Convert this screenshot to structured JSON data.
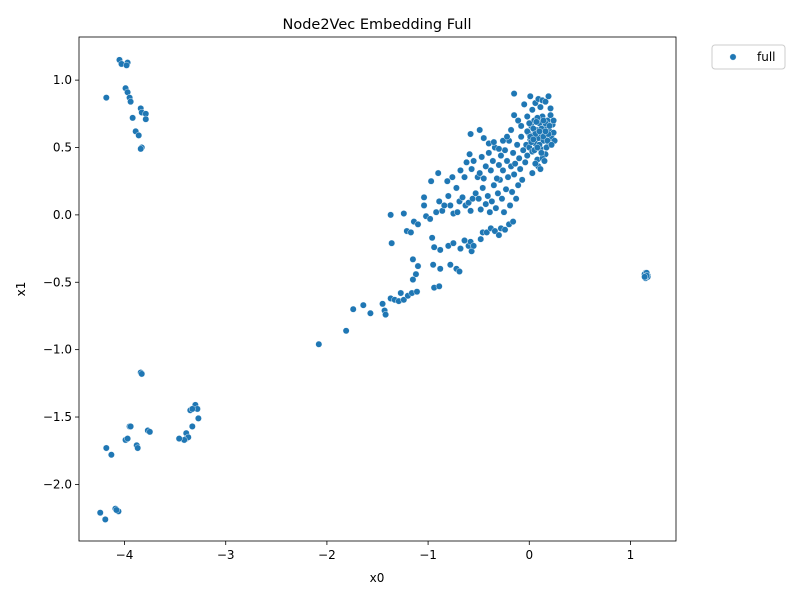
{
  "chart_data": {
    "type": "scatter",
    "title": "Node2Vec Embedding Full",
    "xlabel": "x0",
    "ylabel": "x1",
    "xlim": [
      -4.45,
      1.45
    ],
    "ylim": [
      -2.42,
      1.32
    ],
    "xticks": [
      -4,
      -3,
      -2,
      -1,
      0,
      1
    ],
    "yticks": [
      -2.0,
      -1.5,
      -1.0,
      -0.5,
      0.0,
      0.5,
      1.0
    ],
    "xtick_labels": [
      "−4",
      "−3",
      "−2",
      "−1",
      "0",
      "1"
    ],
    "ytick_labels": [
      "−2.0",
      "−1.5",
      "−1.0",
      "−0.5",
      "0.0",
      "0.5",
      "1.0"
    ],
    "grid": false,
    "legend_position": "outside upper-right",
    "series": [
      {
        "name": "full",
        "color": "#1f77b4",
        "points": [
          [
            -4.05,
            1.15
          ],
          [
            -3.97,
            1.13
          ],
          [
            -4.03,
            1.12
          ],
          [
            -3.98,
            1.11
          ],
          [
            -4.18,
            0.87
          ],
          [
            -3.99,
            0.94
          ],
          [
            -3.97,
            0.91
          ],
          [
            -3.95,
            0.87
          ],
          [
            -3.94,
            0.84
          ],
          [
            -3.84,
            0.79
          ],
          [
            -3.83,
            0.76
          ],
          [
            -3.92,
            0.72
          ],
          [
            -3.79,
            0.75
          ],
          [
            -3.79,
            0.71
          ],
          [
            -3.89,
            0.62
          ],
          [
            -3.86,
            0.59
          ],
          [
            -3.83,
            0.5
          ],
          [
            -3.84,
            0.49
          ],
          [
            -3.84,
            -1.17
          ],
          [
            -3.83,
            -1.18
          ],
          [
            -3.77,
            -1.6
          ],
          [
            -3.75,
            -1.61
          ],
          [
            -3.95,
            -1.57
          ],
          [
            -3.94,
            -1.57
          ],
          [
            -3.99,
            -1.67
          ],
          [
            -3.97,
            -1.66
          ],
          [
            -3.88,
            -1.71
          ],
          [
            -3.87,
            -1.73
          ],
          [
            -4.18,
            -1.73
          ],
          [
            -4.13,
            -1.78
          ],
          [
            -4.09,
            -2.18
          ],
          [
            -4.06,
            -2.2
          ],
          [
            -4.08,
            -2.19
          ],
          [
            -4.24,
            -2.21
          ],
          [
            -4.19,
            -2.26
          ],
          [
            -3.3,
            -1.41
          ],
          [
            -3.28,
            -1.44
          ],
          [
            -3.35,
            -1.45
          ],
          [
            -3.33,
            -1.44
          ],
          [
            -3.27,
            -1.51
          ],
          [
            -3.33,
            -1.57
          ],
          [
            -3.39,
            -1.62
          ],
          [
            -3.39,
            -1.66
          ],
          [
            -3.37,
            -1.65
          ],
          [
            -3.41,
            -1.67
          ],
          [
            -3.46,
            -1.66
          ],
          [
            -2.08,
            -0.96
          ],
          [
            -1.81,
            -0.86
          ],
          [
            -1.74,
            -0.7
          ],
          [
            -1.64,
            -0.67
          ],
          [
            -1.57,
            -0.73
          ],
          [
            -1.45,
            -0.66
          ],
          [
            -1.43,
            -0.71
          ],
          [
            -1.42,
            -0.74
          ],
          [
            -1.37,
            -0.62
          ],
          [
            -1.33,
            -0.63
          ],
          [
            -1.29,
            -0.64
          ],
          [
            -1.27,
            -0.58
          ],
          [
            -1.24,
            -0.63
          ],
          [
            -1.2,
            -0.6
          ],
          [
            -1.16,
            -0.58
          ],
          [
            -1.11,
            -0.57
          ],
          [
            -1.12,
            -0.44
          ],
          [
            -1.15,
            -0.48
          ],
          [
            -0.94,
            -0.54
          ],
          [
            -0.89,
            -0.53
          ],
          [
            -1.15,
            -0.33
          ],
          [
            -1.1,
            -0.38
          ],
          [
            -0.95,
            -0.37
          ],
          [
            -0.88,
            -0.4
          ],
          [
            -0.78,
            -0.37
          ],
          [
            -0.72,
            -0.4
          ],
          [
            -0.69,
            -0.42
          ],
          [
            -1.37,
            0.0
          ],
          [
            -1.36,
            -0.21
          ],
          [
            -1.24,
            0.01
          ],
          [
            -1.21,
            -0.12
          ],
          [
            -1.17,
            -0.13
          ],
          [
            -1.14,
            -0.05
          ],
          [
            -1.1,
            -0.07
          ],
          [
            -1.02,
            -0.01
          ],
          [
            -0.98,
            -0.03
          ],
          [
            -1.04,
            0.07
          ],
          [
            -0.96,
            -0.17
          ],
          [
            -0.94,
            -0.24
          ],
          [
            -0.88,
            -0.26
          ],
          [
            -0.8,
            -0.23
          ],
          [
            -0.75,
            -0.21
          ],
          [
            -0.68,
            -0.25
          ],
          [
            -0.64,
            -0.19
          ],
          [
            -0.6,
            -0.23
          ],
          [
            -0.58,
            -0.2
          ],
          [
            -0.57,
            -0.27
          ],
          [
            -0.55,
            -0.23
          ],
          [
            -0.48,
            -0.18
          ],
          [
            -0.46,
            -0.13
          ],
          [
            -0.42,
            -0.13
          ],
          [
            -0.38,
            -0.1
          ],
          [
            -0.34,
            -0.12
          ],
          [
            -0.3,
            -0.15
          ],
          [
            -0.28,
            -0.1
          ],
          [
            -0.24,
            -0.11
          ],
          [
            -0.2,
            -0.07
          ],
          [
            -0.16,
            -0.05
          ],
          [
            -0.92,
            0.02
          ],
          [
            -0.89,
            0.1
          ],
          [
            -0.86,
            0.03
          ],
          [
            -0.84,
            0.07
          ],
          [
            -0.8,
            0.14
          ],
          [
            -0.78,
            0.07
          ],
          [
            -0.75,
            0.01
          ],
          [
            -0.71,
            0.02
          ],
          [
            -0.69,
            0.1
          ],
          [
            -0.66,
            0.13
          ],
          [
            -0.63,
            0.07
          ],
          [
            -0.6,
            0.09
          ],
          [
            -0.58,
            0.03
          ],
          [
            -0.56,
            0.12
          ],
          [
            -0.53,
            0.16
          ],
          [
            -0.5,
            0.12
          ],
          [
            -0.48,
            0.04
          ],
          [
            -0.46,
            0.2
          ],
          [
            -0.43,
            0.08
          ],
          [
            -0.41,
            0.14
          ],
          [
            -0.39,
            0.02
          ],
          [
            -0.37,
            0.1
          ],
          [
            -0.35,
            0.22
          ],
          [
            -0.33,
            0.05
          ],
          [
            -0.31,
            0.16
          ],
          [
            -0.29,
            0.26
          ],
          [
            -0.27,
            0.12
          ],
          [
            -0.25,
            0.02
          ],
          [
            -0.23,
            0.19
          ],
          [
            -0.21,
            0.28
          ],
          [
            -0.19,
            0.07
          ],
          [
            -0.17,
            0.17
          ],
          [
            -0.15,
            0.3
          ],
          [
            -0.13,
            0.12
          ],
          [
            -0.11,
            0.22
          ],
          [
            -0.09,
            0.34
          ],
          [
            -0.07,
            0.26
          ],
          [
            -1.04,
            0.13
          ],
          [
            -0.97,
            0.25
          ],
          [
            -0.9,
            0.31
          ],
          [
            -0.81,
            0.25
          ],
          [
            -0.76,
            0.28
          ],
          [
            -0.72,
            0.2
          ],
          [
            -0.68,
            0.33
          ],
          [
            -0.64,
            0.28
          ],
          [
            -0.62,
            0.39
          ],
          [
            -0.59,
            0.45
          ],
          [
            -0.57,
            0.34
          ],
          [
            -0.55,
            0.4
          ],
          [
            -0.51,
            0.28
          ],
          [
            -0.49,
            0.31
          ],
          [
            -0.47,
            0.43
          ],
          [
            -0.45,
            0.27
          ],
          [
            -0.43,
            0.36
          ],
          [
            -0.4,
            0.46
          ],
          [
            -0.38,
            0.33
          ],
          [
            -0.36,
            0.4
          ],
          [
            -0.34,
            0.5
          ],
          [
            -0.32,
            0.27
          ],
          [
            -0.3,
            0.37
          ],
          [
            -0.28,
            0.44
          ],
          [
            -0.26,
            0.33
          ],
          [
            -0.24,
            0.48
          ],
          [
            -0.22,
            0.4
          ],
          [
            -0.2,
            0.55
          ],
          [
            -0.18,
            0.36
          ],
          [
            -0.16,
            0.46
          ],
          [
            -0.14,
            0.38
          ],
          [
            -0.12,
            0.52
          ],
          [
            -0.1,
            0.42
          ],
          [
            -0.08,
            0.58
          ],
          [
            -0.06,
            0.48
          ],
          [
            -0.58,
            0.6
          ],
          [
            -0.49,
            0.63
          ],
          [
            -0.45,
            0.57
          ],
          [
            -0.4,
            0.53
          ],
          [
            -0.35,
            0.54
          ],
          [
            -0.3,
            0.49
          ],
          [
            -0.26,
            0.55
          ],
          [
            -0.22,
            0.58
          ],
          [
            -0.18,
            0.63
          ],
          [
            -0.15,
            0.74
          ],
          [
            -0.15,
            0.9
          ],
          [
            -0.11,
            0.7
          ],
          [
            -0.08,
            0.66
          ],
          [
            -0.05,
            0.82
          ],
          [
            -0.02,
            0.73
          ],
          [
            0.01,
            0.88
          ],
          [
            0.03,
            0.78
          ],
          [
            0.06,
            0.83
          ],
          [
            0.09,
            0.86
          ],
          [
            0.11,
            0.8
          ],
          [
            0.13,
            0.85
          ],
          [
            0.16,
            0.84
          ],
          [
            0.19,
            0.88
          ],
          [
            0.21,
            0.79
          ],
          [
            -0.04,
            0.39
          ],
          [
            -0.03,
            0.52
          ],
          [
            -0.02,
            0.44
          ],
          [
            -0.01,
            0.61
          ],
          [
            0.0,
            0.5
          ],
          [
            0.01,
            0.56
          ],
          [
            0.02,
            0.66
          ],
          [
            0.03,
            0.47
          ],
          [
            0.04,
            0.59
          ],
          [
            0.05,
            0.7
          ],
          [
            0.06,
            0.53
          ],
          [
            0.07,
            0.63
          ],
          [
            0.08,
            0.41
          ],
          [
            0.09,
            0.57
          ],
          [
            0.1,
            0.68
          ],
          [
            0.11,
            0.49
          ],
          [
            0.12,
            0.6
          ],
          [
            0.13,
            0.73
          ],
          [
            0.14,
            0.55
          ],
          [
            0.15,
            0.65
          ],
          [
            0.16,
            0.45
          ],
          [
            0.17,
            0.58
          ],
          [
            0.18,
            0.7
          ],
          [
            0.19,
            0.52
          ],
          [
            0.2,
            0.62
          ],
          [
            0.21,
            0.74
          ],
          [
            0.22,
            0.57
          ],
          [
            0.23,
            0.67
          ],
          [
            0.24,
            0.61
          ],
          [
            0.25,
            0.55
          ],
          [
            0.24,
            0.7
          ],
          [
            -0.02,
            0.62
          ],
          [
            0.0,
            0.68
          ],
          [
            0.02,
            0.54
          ],
          [
            0.04,
            0.64
          ],
          [
            0.06,
            0.6
          ],
          [
            0.08,
            0.72
          ],
          [
            0.1,
            0.52
          ],
          [
            0.12,
            0.64
          ],
          [
            0.14,
            0.58
          ],
          [
            0.16,
            0.68
          ],
          [
            0.18,
            0.55
          ],
          [
            0.2,
            0.66
          ],
          [
            0.05,
            0.48
          ],
          [
            0.09,
            0.36
          ],
          [
            0.13,
            0.42
          ],
          [
            0.06,
            0.38
          ],
          [
            0.11,
            0.34
          ],
          [
            0.15,
            0.4
          ],
          [
            0.03,
            0.31
          ],
          [
            0.12,
            0.46
          ],
          [
            0.17,
            0.5
          ],
          [
            0.07,
            0.69
          ],
          [
            0.01,
            0.58
          ],
          [
            0.1,
            0.62
          ],
          [
            0.14,
            0.7
          ],
          [
            0.19,
            0.6
          ],
          [
            0.22,
            0.52
          ],
          [
            0.04,
            0.56
          ],
          [
            0.08,
            0.5
          ],
          [
            0.16,
            0.62
          ],
          [
            1.15,
            -0.43
          ],
          [
            1.16,
            -0.44
          ],
          [
            1.15,
            -0.45
          ],
          [
            1.16,
            -0.46
          ],
          [
            1.15,
            -0.47
          ],
          [
            1.17,
            -0.45
          ],
          [
            1.14,
            -0.44
          ],
          [
            1.16,
            -0.43
          ],
          [
            1.17,
            -0.46
          ],
          [
            1.15,
            -0.46
          ],
          [
            1.16,
            -0.45
          ],
          [
            1.14,
            -0.46
          ]
        ]
      }
    ]
  }
}
